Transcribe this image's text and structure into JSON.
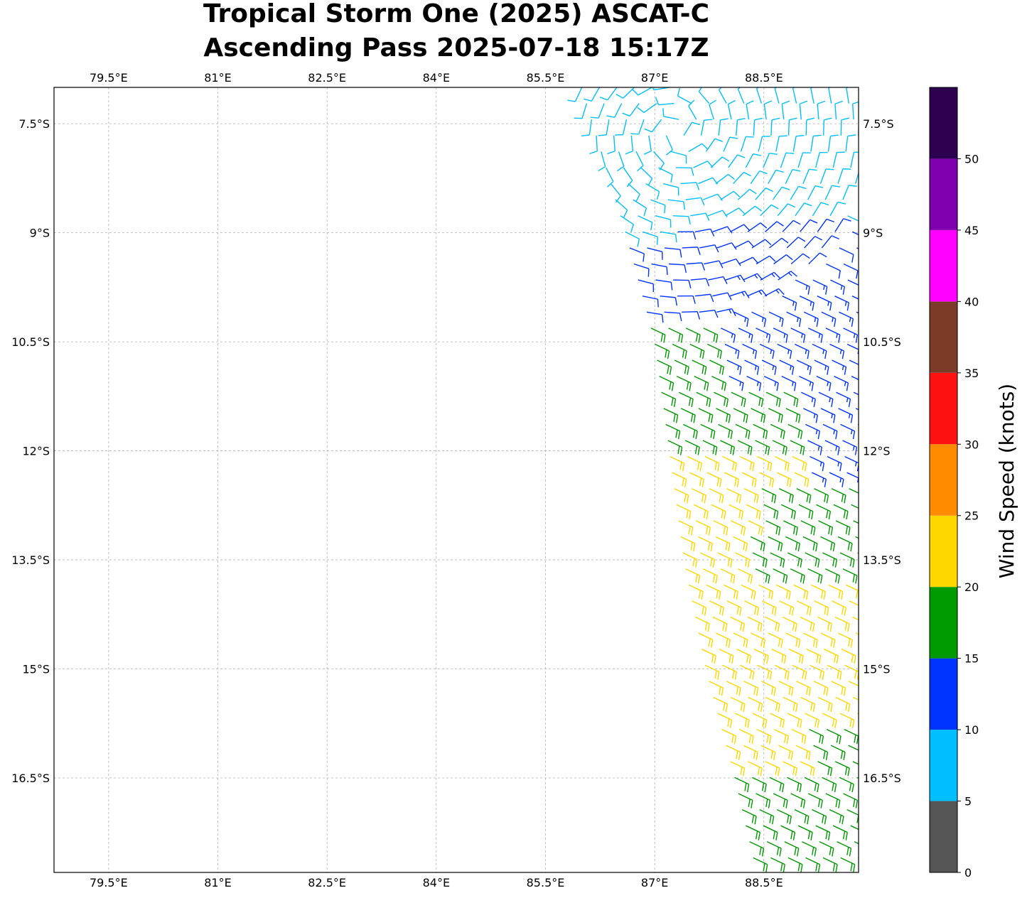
{
  "title": {
    "line1": "Tropical Storm One (2025) ASCAT-C",
    "line2": "Ascending Pass 2025-07-18 15:17Z"
  },
  "map": {
    "lon_range": [
      78.75,
      89.8
    ],
    "lat_range": [
      -17.8,
      -7.0
    ],
    "lon_ticks": [
      79.5,
      81,
      82.5,
      84,
      85.5,
      87,
      88.5
    ],
    "lon_labels": [
      "79.5°E",
      "81°E",
      "82.5°E",
      "84°E",
      "85.5°E",
      "87°E",
      "88.5°E"
    ],
    "lat_ticks": [
      -7.5,
      -9,
      -10.5,
      -12,
      -13.5,
      -15,
      -16.5
    ],
    "lat_labels": [
      "7.5°S",
      "9°S",
      "10.5°S",
      "12°S",
      "13.5°S",
      "15°S",
      "16.5°S"
    ],
    "gridlines": true
  },
  "colorbar": {
    "label": "Wind Speed (knots)",
    "bounds": [
      0,
      5,
      10,
      15,
      20,
      25,
      30,
      35,
      40,
      45,
      50,
      55
    ],
    "tick_values": [
      0,
      5,
      10,
      15,
      20,
      25,
      30,
      35,
      40,
      45,
      50
    ],
    "tick_labels": [
      "0",
      "5",
      "10",
      "15",
      "20",
      "25",
      "30",
      "35",
      "40",
      "45",
      "50"
    ],
    "colors": [
      "#555555",
      "#00bfff",
      "#0033ff",
      "#009900",
      "#ffd700",
      "#ff8c00",
      "#ff1111",
      "#7b3b27",
      "#ff00ff",
      "#8000b0",
      "#2d0050"
    ]
  },
  "wind_field": {
    "description_units": "knots",
    "swath_edge_west": [
      [
        86.0,
        -7.0
      ],
      [
        86.6,
        -9.0
      ],
      [
        87.0,
        -10.5
      ],
      [
        87.2,
        -12.0
      ],
      [
        87.4,
        -13.5
      ],
      [
        87.7,
        -15.0
      ],
      [
        88.1,
        -16.5
      ],
      [
        88.4,
        -17.8
      ]
    ],
    "grid_spacing_deg": 0.24,
    "zones": [
      {
        "speed_range_kt": [
          5,
          10
        ],
        "lat_range": [
          -9.0,
          -7.0
        ],
        "note": "light cyan barbs near circulation"
      },
      {
        "speed_range_kt": [
          10,
          15
        ],
        "lat_range": [
          -10.5,
          -8.7
        ]
      },
      {
        "speed_range_kt": [
          15,
          20
        ],
        "lat_range": [
          -12.5,
          -9.8
        ]
      },
      {
        "speed_range_kt": [
          20,
          25
        ],
        "lat_range": [
          -16.5,
          -12.0
        ]
      },
      {
        "speed_range_kt": [
          15,
          20
        ],
        "lat_range": [
          -17.8,
          -16.2
        ]
      }
    ]
  }
}
